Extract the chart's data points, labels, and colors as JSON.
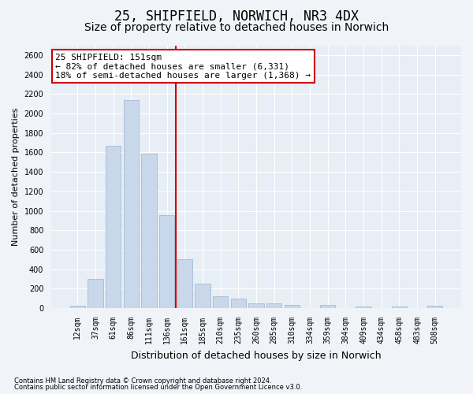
{
  "title": "25, SHIPFIELD, NORWICH, NR3 4DX",
  "subtitle": "Size of property relative to detached houses in Norwich",
  "xlabel": "Distribution of detached houses by size in Norwich",
  "ylabel": "Number of detached properties",
  "footnote1": "Contains HM Land Registry data © Crown copyright and database right 2024.",
  "footnote2": "Contains public sector information licensed under the Open Government Licence v3.0.",
  "bar_labels": [
    "12sqm",
    "37sqm",
    "61sqm",
    "86sqm",
    "111sqm",
    "136sqm",
    "161sqm",
    "185sqm",
    "210sqm",
    "235sqm",
    "260sqm",
    "285sqm",
    "310sqm",
    "334sqm",
    "359sqm",
    "384sqm",
    "409sqm",
    "434sqm",
    "458sqm",
    "483sqm",
    "508sqm"
  ],
  "bar_values": [
    25,
    300,
    1670,
    2140,
    1590,
    960,
    500,
    250,
    120,
    100,
    50,
    50,
    35,
    0,
    35,
    0,
    20,
    0,
    20,
    0,
    25
  ],
  "bar_color": "#c8d8ea",
  "bar_edge_color": "#9ab4cc",
  "vline_color": "#cc0000",
  "annotation_line1": "25 SHIPFIELD: 151sqm",
  "annotation_line2": "← 82% of detached houses are smaller (6,331)",
  "annotation_line3": "18% of semi-detached houses are larger (1,368) →",
  "annotation_box_color": "#ffffff",
  "annotation_box_edge": "#cc0000",
  "ylim": [
    0,
    2700
  ],
  "yticks": [
    0,
    200,
    400,
    600,
    800,
    1000,
    1200,
    1400,
    1600,
    1800,
    2000,
    2200,
    2400,
    2600
  ],
  "bg_color": "#f0f4f8",
  "plot_bg_color": "#e8eef5",
  "grid_color": "#ffffff",
  "title_fontsize": 12,
  "subtitle_fontsize": 10,
  "ylabel_fontsize": 8,
  "xlabel_fontsize": 9,
  "tick_fontsize": 7,
  "annotation_fontsize": 8,
  "footnote_fontsize": 6
}
